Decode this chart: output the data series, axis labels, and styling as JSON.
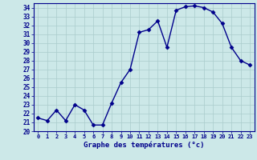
{
  "hours": [
    0,
    1,
    2,
    3,
    4,
    5,
    6,
    7,
    8,
    9,
    10,
    11,
    12,
    13,
    14,
    15,
    16,
    17,
    18,
    19,
    20,
    21,
    22,
    23
  ],
  "temps": [
    21.5,
    21.2,
    22.4,
    21.2,
    23.0,
    22.4,
    20.7,
    20.7,
    23.2,
    25.5,
    27.0,
    31.2,
    31.5,
    32.5,
    29.5,
    33.7,
    34.1,
    34.2,
    34.0,
    33.5,
    32.2,
    29.5,
    28.0,
    27.5
  ],
  "line_color": "#00008b",
  "marker": "D",
  "marker_size": 2.5,
  "bg_color": "#cce8e8",
  "grid_color": "#aacccc",
  "xlabel": "Graphe des températures (°c)",
  "ylabel_ticks": [
    20,
    21,
    22,
    23,
    24,
    25,
    26,
    27,
    28,
    29,
    30,
    31,
    32,
    33,
    34
  ],
  "xlim": [
    -0.5,
    23.5
  ],
  "ylim": [
    20,
    34.5
  ],
  "tick_label_color": "#00008b",
  "xlabel_color": "#00008b",
  "xticks": [
    0,
    1,
    2,
    3,
    4,
    5,
    6,
    7,
    8,
    9,
    10,
    11,
    12,
    13,
    14,
    15,
    16,
    17,
    18,
    19,
    20,
    21,
    22,
    23
  ],
  "figsize": [
    3.2,
    2.0
  ],
  "dpi": 100
}
